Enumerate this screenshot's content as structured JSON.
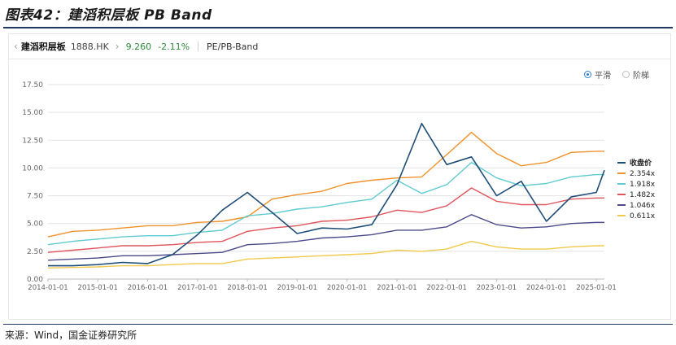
{
  "figure_title": "图表42：建滔积层板 PB Band",
  "source": "来源：Wind，国金证券研究所",
  "toolbar": {
    "back_chevron": "‹",
    "stock_name": "建滔积层板",
    "code": "1888.HK",
    "forward_chevron": "›",
    "price": "9.260",
    "change": "-2.11%",
    "mode": "PE/PB-Band"
  },
  "options": {
    "smooth_label": "平滑",
    "step_label": "阶梯",
    "selected": "smooth"
  },
  "colors": {
    "price": "#1f4e79",
    "band_2354": "#f0922b",
    "band_1918": "#5ecbd0",
    "band_1482": "#e0555c",
    "band_1046": "#4b4a8a",
    "band_0611": "#f2c94c",
    "grid": "#e3e3e3"
  },
  "chart_data": {
    "type": "line",
    "xlabel": "",
    "ylabel": "",
    "xlim": [
      "2014-01-01",
      "2025-03-01"
    ],
    "ylim": [
      0,
      17.5
    ],
    "y_ticks": [
      "0.00",
      "2.50",
      "5.00",
      "7.50",
      "10.00",
      "12.50",
      "15.00",
      "17.50"
    ],
    "x_ticks": [
      "2014-01-01",
      "2015-01-01",
      "2016-01-01",
      "2017-01-01",
      "2018-01-01",
      "2019-01-01",
      "2020-01-01",
      "2021-01-01",
      "2022-01-01",
      "2023-01-01",
      "2024-01-01",
      "2025-01-01"
    ],
    "grid": "horizontal",
    "legend_position": "right",
    "x": [
      "2014-01-01",
      "2014-07-01",
      "2015-01-01",
      "2015-07-01",
      "2016-01-01",
      "2016-07-01",
      "2017-01-01",
      "2017-07-01",
      "2018-01-01",
      "2018-07-01",
      "2019-01-01",
      "2019-07-01",
      "2020-01-01",
      "2020-07-01",
      "2021-01-01",
      "2021-07-01",
      "2022-01-01",
      "2022-07-01",
      "2023-01-01",
      "2023-07-01",
      "2024-01-01",
      "2024-07-01",
      "2025-01-01",
      "2025-03-01"
    ],
    "series": [
      {
        "name": "收盘价",
        "values": [
          1.2,
          1.2,
          1.3,
          1.5,
          1.4,
          2.2,
          4.0,
          6.2,
          7.8,
          6.0,
          4.1,
          4.6,
          4.5,
          4.9,
          8.5,
          14.0,
          10.3,
          11.0,
          7.5,
          8.8,
          5.2,
          7.4,
          7.8,
          9.8
        ]
      },
      {
        "name": "2.354x",
        "values": [
          3.8,
          4.3,
          4.4,
          4.6,
          4.8,
          4.8,
          5.1,
          5.2,
          5.6,
          7.2,
          7.6,
          7.9,
          8.6,
          8.9,
          9.1,
          9.2,
          11.2,
          13.2,
          11.3,
          10.2,
          10.5,
          11.4,
          11.5,
          11.5
        ]
      },
      {
        "name": "1.918x",
        "values": [
          3.1,
          3.4,
          3.6,
          3.8,
          3.9,
          3.9,
          4.2,
          4.4,
          5.7,
          5.9,
          6.3,
          6.5,
          6.9,
          7.2,
          8.9,
          7.7,
          8.5,
          10.5,
          9.1,
          8.4,
          8.6,
          9.2,
          9.4,
          9.4
        ]
      },
      {
        "name": "1.482x",
        "values": [
          2.4,
          2.6,
          2.8,
          3.0,
          3.0,
          3.1,
          3.3,
          3.4,
          4.3,
          4.6,
          4.8,
          5.2,
          5.3,
          5.6,
          6.2,
          6.0,
          6.6,
          8.2,
          7.0,
          6.7,
          6.7,
          7.2,
          7.3,
          7.3
        ]
      },
      {
        "name": "1.046x",
        "values": [
          1.7,
          1.8,
          1.9,
          2.1,
          2.1,
          2.2,
          2.3,
          2.4,
          3.1,
          3.2,
          3.4,
          3.7,
          3.8,
          4.0,
          4.4,
          4.4,
          4.7,
          5.8,
          4.9,
          4.6,
          4.7,
          5.0,
          5.1,
          5.1
        ]
      },
      {
        "name": "0.611x",
        "values": [
          1.0,
          1.05,
          1.1,
          1.2,
          1.2,
          1.3,
          1.4,
          1.4,
          1.8,
          1.9,
          2.0,
          2.1,
          2.2,
          2.3,
          2.6,
          2.5,
          2.7,
          3.4,
          2.9,
          2.7,
          2.7,
          2.9,
          3.0,
          3.0
        ]
      }
    ]
  }
}
